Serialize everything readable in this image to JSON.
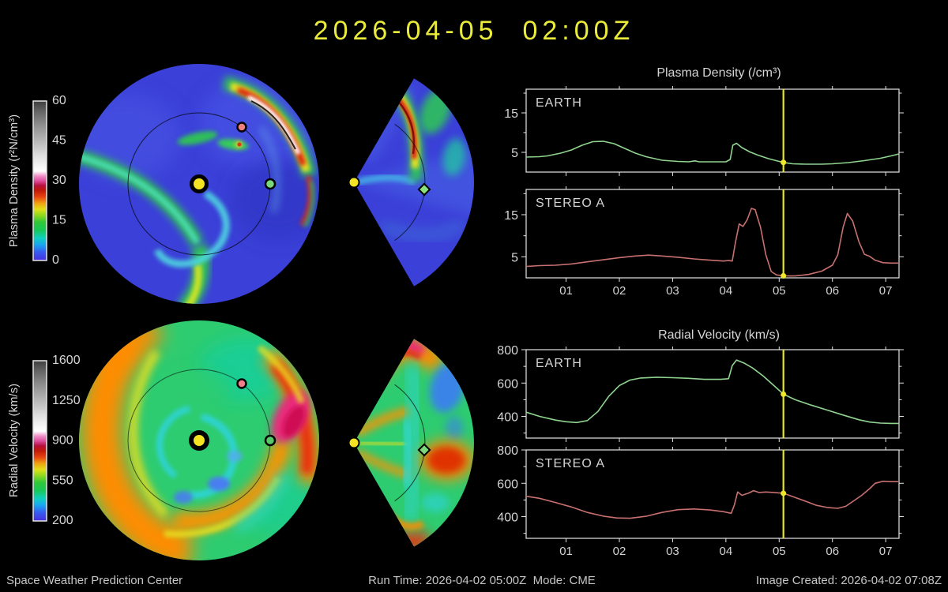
{
  "title": "2026-04-05  02:00Z",
  "colorbars": {
    "density": {
      "label": "Plasma Density (r²N/cm³)",
      "ticks": [
        "60",
        "45",
        "30",
        "15",
        "0"
      ]
    },
    "velocity": {
      "label": "Radial Velocity (km/s)",
      "ticks": [
        "1600",
        "1250",
        "900",
        "550",
        "200"
      ]
    }
  },
  "footer": {
    "left": "Space Weather Prediction Center",
    "center": "Run Time: 2026-04-02 05:00Z  Mode: CME",
    "right": "Image Created: 2026-04-02 07:08Z"
  },
  "colors": {
    "title_yellow": "#ebeb3a",
    "event_yellow": "#e8e820",
    "earth_line_green": "#8fd48f",
    "stereo_line_red": "#c87070",
    "frame_white": "#e6e6e6",
    "tick_text": "#d4d4d4"
  },
  "chart_data": [
    {
      "id": "plasma-density-earth",
      "type": "line",
      "group_title": "Plasma Density (/cm³)",
      "station": "EARTH",
      "line_color": "#8fd48f",
      "xlim": [
        0.25,
        7.25
      ],
      "ylim": [
        0,
        21
      ],
      "yticks": [
        5,
        15
      ],
      "ytick_labels": [
        "5",
        "15"
      ],
      "yticks_minor": [
        10,
        20
      ],
      "xticks": [
        1,
        2,
        3,
        4,
        5,
        6,
        7
      ],
      "xtick_labels": [
        "01",
        "02",
        "03",
        "04",
        "05",
        "06",
        "07"
      ],
      "show_xlabels": false,
      "event_x": 5.08,
      "x": [
        0.25,
        0.5,
        0.65,
        0.9,
        1.1,
        1.3,
        1.5,
        1.7,
        1.9,
        2.1,
        2.3,
        2.5,
        2.8,
        3.1,
        3.3,
        3.42,
        3.5,
        3.8,
        4.0,
        4.08,
        4.13,
        4.2,
        4.3,
        4.45,
        4.6,
        4.8,
        5.0,
        5.08,
        5.25,
        5.5,
        5.8,
        6.0,
        6.3,
        6.6,
        6.9,
        7.1,
        7.25
      ],
      "y": [
        3.8,
        3.9,
        4.1,
        4.8,
        5.6,
        6.8,
        7.7,
        7.8,
        7.2,
        6.0,
        4.8,
        3.9,
        3.0,
        2.7,
        2.6,
        2.85,
        2.6,
        2.6,
        2.6,
        3.2,
        6.8,
        7.3,
        6.2,
        5.1,
        4.3,
        3.4,
        2.7,
        2.45,
        2.1,
        2.0,
        2.0,
        2.1,
        2.4,
        2.9,
        3.5,
        4.1,
        4.6
      ]
    },
    {
      "id": "plasma-density-stereo-a",
      "type": "line",
      "station": "STEREO A",
      "line_color": "#c87070",
      "xlim": [
        0.25,
        7.25
      ],
      "ylim": [
        0,
        21
      ],
      "yticks": [
        5,
        15
      ],
      "ytick_labels": [
        "5",
        "15"
      ],
      "yticks_minor": [
        10,
        20
      ],
      "xticks": [
        1,
        2,
        3,
        4,
        5,
        6,
        7
      ],
      "xtick_labels": [
        "01",
        "02",
        "03",
        "04",
        "05",
        "06",
        "07"
      ],
      "show_xlabels": true,
      "event_x": 5.08,
      "x": [
        0.25,
        0.5,
        0.8,
        1.1,
        1.4,
        1.7,
        2.0,
        2.3,
        2.55,
        2.8,
        3.1,
        3.4,
        3.7,
        3.95,
        4.05,
        4.12,
        4.18,
        4.25,
        4.32,
        4.4,
        4.48,
        4.55,
        4.65,
        4.75,
        4.85,
        4.95,
        5.1,
        5.3,
        5.55,
        5.8,
        6.0,
        6.1,
        6.2,
        6.28,
        6.38,
        6.5,
        6.6,
        6.7,
        6.8,
        6.95,
        7.1,
        7.25
      ],
      "y": [
        2.7,
        2.9,
        3.0,
        3.3,
        3.8,
        4.3,
        4.8,
        5.2,
        5.4,
        5.2,
        4.9,
        4.5,
        4.2,
        4.0,
        4.1,
        4.0,
        8.5,
        12.8,
        12.2,
        13.8,
        16.5,
        16.2,
        12.0,
        5.5,
        1.5,
        0.7,
        0.45,
        0.45,
        0.8,
        1.6,
        3.0,
        5.5,
        12.0,
        15.3,
        13.5,
        8.5,
        5.6,
        5.1,
        4.2,
        3.6,
        3.5,
        3.5
      ]
    },
    {
      "id": "radial-velocity-earth",
      "type": "line",
      "group_title": "Radial Velocity (km/s)",
      "station": "EARTH",
      "line_color": "#8fd48f",
      "xlim": [
        0.25,
        7.25
      ],
      "ylim": [
        270,
        800
      ],
      "yticks": [
        400,
        600,
        800
      ],
      "ytick_labels": [
        "400",
        "600",
        "800"
      ],
      "yticks_minor": [
        300,
        500,
        700
      ],
      "xticks": [
        1,
        2,
        3,
        4,
        5,
        6,
        7
      ],
      "xtick_labels": [
        "01",
        "02",
        "03",
        "04",
        "05",
        "06",
        "07"
      ],
      "show_xlabels": false,
      "event_x": 5.08,
      "x": [
        0.25,
        0.5,
        0.8,
        1.0,
        1.2,
        1.4,
        1.6,
        1.8,
        2.0,
        2.2,
        2.4,
        2.7,
        3.0,
        3.3,
        3.6,
        3.9,
        4.05,
        4.12,
        4.2,
        4.35,
        4.5,
        4.7,
        4.9,
        5.08,
        5.3,
        5.6,
        5.9,
        6.2,
        6.5,
        6.7,
        6.9,
        7.1,
        7.25
      ],
      "y": [
        425,
        400,
        378,
        368,
        363,
        375,
        430,
        520,
        585,
        618,
        630,
        635,
        632,
        628,
        622,
        622,
        626,
        705,
        738,
        718,
        690,
        642,
        585,
        533,
        500,
        468,
        438,
        408,
        380,
        366,
        360,
        358,
        358
      ]
    },
    {
      "id": "radial-velocity-stereo-a",
      "type": "line",
      "station": "STEREO A",
      "line_color": "#c87070",
      "xlim": [
        0.25,
        7.25
      ],
      "ylim": [
        270,
        800
      ],
      "yticks": [
        400,
        600,
        800
      ],
      "ytick_labels": [
        "400",
        "600",
        "800"
      ],
      "yticks_minor": [
        300,
        500,
        700
      ],
      "xticks": [
        1,
        2,
        3,
        4,
        5,
        6,
        7
      ],
      "xtick_labels": [
        "01",
        "02",
        "03",
        "04",
        "05",
        "06",
        "07"
      ],
      "show_xlabels": true,
      "event_x": 5.08,
      "x": [
        0.25,
        0.5,
        0.8,
        1.1,
        1.4,
        1.7,
        1.95,
        2.2,
        2.5,
        2.8,
        3.1,
        3.4,
        3.7,
        3.95,
        4.1,
        4.16,
        4.22,
        4.3,
        4.42,
        4.52,
        4.62,
        4.75,
        4.9,
        5.08,
        5.3,
        5.5,
        5.7,
        5.9,
        6.1,
        6.25,
        6.4,
        6.55,
        6.7,
        6.8,
        6.95,
        7.1,
        7.25
      ],
      "y": [
        522,
        510,
        485,
        458,
        425,
        403,
        392,
        390,
        402,
        425,
        442,
        446,
        440,
        430,
        420,
        470,
        548,
        528,
        540,
        556,
        545,
        548,
        545,
        540,
        515,
        492,
        468,
        455,
        450,
        462,
        495,
        528,
        568,
        600,
        612,
        610,
        610
      ]
    }
  ]
}
